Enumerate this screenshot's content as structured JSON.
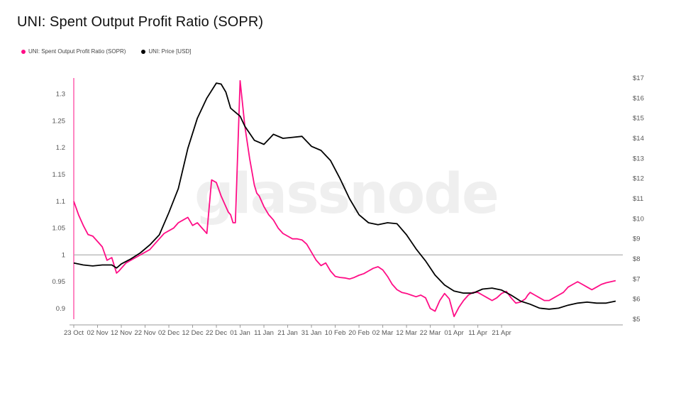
{
  "title": "UNI: Spent Output Profit Ratio (SOPR)",
  "watermark": "glassnode",
  "colors": {
    "sopr": "#ff0d86",
    "price": "#000000",
    "baseline": "#aaaaaa"
  },
  "chart_data": {
    "type": "line",
    "title": "UNI: Spent Output Profit Ratio (SOPR)",
    "legend_position": "top-left",
    "grid": false,
    "x_labels": [
      "23 Oct",
      "02 Nov",
      "12 Nov",
      "22 Nov",
      "02 Dec",
      "12 Dec",
      "22 Dec",
      "01 Jan",
      "11 Jan",
      "21 Jan",
      "31 Jan",
      "10 Feb",
      "20 Feb",
      "02 Mar",
      "12 Mar",
      "22 Mar",
      "01 Apr",
      "11 Apr",
      "21 Apr"
    ],
    "y_left": {
      "ticks": [
        "0.9",
        "0.95",
        "1",
        "1.05",
        "1.1",
        "1.15",
        "1.2",
        "1.25",
        "1.3"
      ],
      "range": [
        0.88,
        1.33
      ]
    },
    "y_right": {
      "ticks": [
        "$5",
        "$6",
        "$7",
        "$8",
        "$9",
        "$10",
        "$11",
        "$12",
        "$13",
        "$14",
        "$15",
        "$16",
        "$17"
      ],
      "range": [
        5,
        17
      ]
    },
    "reference_line": 1,
    "series": [
      {
        "name": "UNI: Spent Output Profit Ratio (SOPR)",
        "axis": "left",
        "x": [
          0,
          2,
          4,
          6,
          8,
          10,
          12,
          14,
          16,
          18,
          19,
          20,
          21,
          22,
          24,
          26,
          28,
          30,
          32,
          34,
          36,
          38,
          40,
          42,
          44,
          46,
          48,
          50,
          52,
          54,
          56,
          58,
          60,
          62,
          64,
          65,
          66,
          67,
          68,
          70,
          72,
          74,
          76,
          77,
          78,
          80,
          82,
          84,
          86,
          88,
          90,
          92,
          94,
          96,
          98,
          100,
          102,
          104,
          106,
          108,
          110,
          112,
          114,
          116,
          118,
          120,
          122,
          124,
          126,
          128,
          130,
          132,
          134,
          136,
          138,
          140,
          142,
          144,
          146,
          148,
          150,
          152,
          154,
          156,
          158,
          160,
          162,
          164,
          166,
          168,
          170,
          172,
          174,
          176,
          178,
          180,
          182,
          184,
          186,
          188,
          190,
          191,
          192,
          194,
          196,
          198,
          200,
          202,
          204,
          206,
          208,
          210,
          212,
          214,
          216,
          218,
          220,
          222,
          224,
          226,
          228
        ],
        "values": [
          1.1,
          1.075,
          1.055,
          1.038,
          1.035,
          1.025,
          1.015,
          0.99,
          0.995,
          0.966,
          0.97,
          0.975,
          0.98,
          0.985,
          0.99,
          0.995,
          1.0,
          1.005,
          1.01,
          1.02,
          1.03,
          1.04,
          1.045,
          1.05,
          1.06,
          1.065,
          1.07,
          1.055,
          1.06,
          1.05,
          1.04,
          1.14,
          1.135,
          1.11,
          1.09,
          1.08,
          1.075,
          1.06,
          1.06,
          1.325,
          1.24,
          1.18,
          1.13,
          1.115,
          1.11,
          1.09,
          1.075,
          1.065,
          1.05,
          1.04,
          1.035,
          1.03,
          1.03,
          1.028,
          1.02,
          1.005,
          0.99,
          0.98,
          0.985,
          0.97,
          0.96,
          0.958,
          0.957,
          0.955,
          0.958,
          0.962,
          0.965,
          0.97,
          0.975,
          0.978,
          0.972,
          0.96,
          0.945,
          0.935,
          0.93,
          0.928,
          0.925,
          0.922,
          0.925,
          0.92,
          0.9,
          0.895,
          0.915,
          0.928,
          0.918,
          0.885,
          0.902,
          0.915,
          0.925,
          0.93,
          0.93,
          0.925,
          0.92,
          0.915,
          0.92,
          0.928,
          0.932,
          0.92,
          0.91,
          0.912,
          0.918,
          0.925,
          0.93,
          0.925,
          0.92,
          0.915,
          0.915,
          0.92,
          0.925,
          0.93,
          0.94,
          0.945,
          0.95,
          0.945,
          0.94,
          0.935,
          0.94,
          0.945,
          0.948,
          0.95,
          0.952
        ]
      },
      {
        "name": "UNI: Price [USD]",
        "axis": "right",
        "x": [
          0,
          4,
          8,
          12,
          16,
          18,
          20,
          24,
          28,
          32,
          36,
          40,
          44,
          48,
          52,
          56,
          60,
          62,
          64,
          66,
          68,
          70,
          72,
          76,
          80,
          84,
          88,
          92,
          96,
          100,
          104,
          108,
          112,
          116,
          120,
          124,
          128,
          132,
          136,
          140,
          144,
          148,
          152,
          156,
          160,
          164,
          168,
          172,
          176,
          180,
          184,
          188,
          192,
          196,
          200,
          204,
          208,
          212,
          216,
          220,
          224,
          228
        ],
        "values": [
          7.8,
          7.7,
          7.65,
          7.7,
          7.7,
          7.55,
          7.75,
          8.0,
          8.3,
          8.7,
          9.2,
          10.3,
          11.5,
          13.5,
          15.0,
          16.0,
          16.75,
          16.7,
          16.3,
          15.5,
          15.3,
          15.1,
          14.6,
          13.9,
          13.7,
          14.2,
          14.0,
          14.05,
          14.1,
          13.6,
          13.4,
          12.9,
          12.0,
          11.0,
          10.2,
          9.8,
          9.7,
          9.8,
          9.75,
          9.2,
          8.5,
          7.9,
          7.2,
          6.7,
          6.4,
          6.3,
          6.3,
          6.5,
          6.55,
          6.45,
          6.2,
          5.9,
          5.75,
          5.55,
          5.5,
          5.55,
          5.7,
          5.8,
          5.85,
          5.8,
          5.8,
          5.9
        ]
      }
    ]
  }
}
